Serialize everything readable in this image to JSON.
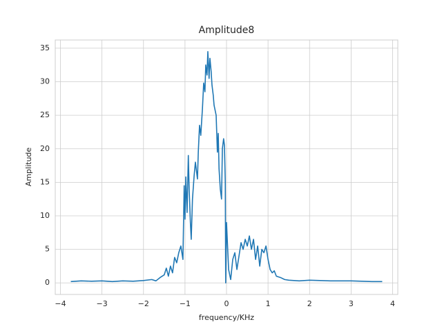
{
  "chart_data": {
    "type": "line",
    "title": "Amplitude8",
    "xlabel": "frequency/KHz",
    "ylabel": "Amplitude",
    "color": "#1f77b4",
    "grid": true,
    "x": [
      -3.75,
      -3.5,
      -3.25,
      -3.0,
      -2.75,
      -2.5,
      -2.25,
      -2.0,
      -1.8,
      -1.7,
      -1.6,
      -1.5,
      -1.45,
      -1.4,
      -1.35,
      -1.3,
      -1.25,
      -1.2,
      -1.15,
      -1.1,
      -1.05,
      -1.02,
      -1.0,
      -0.98,
      -0.95,
      -0.92,
      -0.9,
      -0.87,
      -0.85,
      -0.82,
      -0.78,
      -0.75,
      -0.7,
      -0.68,
      -0.65,
      -0.62,
      -0.58,
      -0.55,
      -0.52,
      -0.5,
      -0.47,
      -0.45,
      -0.42,
      -0.4,
      -0.37,
      -0.35,
      -0.32,
      -0.3,
      -0.25,
      -0.22,
      -0.2,
      -0.18,
      -0.15,
      -0.12,
      -0.1,
      -0.07,
      -0.05,
      -0.03,
      -0.02,
      0.0,
      0.05,
      0.1,
      0.15,
      0.2,
      0.25,
      0.3,
      0.35,
      0.4,
      0.45,
      0.5,
      0.55,
      0.6,
      0.65,
      0.7,
      0.75,
      0.8,
      0.85,
      0.9,
      0.95,
      1.0,
      1.05,
      1.1,
      1.15,
      1.2,
      1.3,
      1.4,
      1.5,
      1.75,
      2.0,
      2.5,
      3.0,
      3.5,
      3.75
    ],
    "values": [
      0.2,
      0.3,
      0.25,
      0.3,
      0.2,
      0.3,
      0.25,
      0.35,
      0.5,
      0.3,
      0.8,
      1.2,
      2.2,
      1.0,
      2.5,
      1.5,
      3.8,
      3.0,
      4.5,
      5.5,
      3.5,
      14.5,
      9.5,
      15.8,
      10.5,
      19.0,
      14.0,
      9.0,
      6.5,
      12.5,
      16.0,
      18.0,
      15.5,
      19.5,
      23.5,
      22.0,
      26.0,
      29.8,
      28.5,
      32.5,
      31.0,
      34.5,
      30.5,
      33.5,
      31.5,
      29.5,
      28.0,
      26.5,
      25.0,
      19.5,
      22.3,
      17.0,
      14.0,
      12.5,
      20.0,
      21.5,
      20.5,
      15.0,
      0.0,
      9.0,
      2.0,
      0.5,
      3.5,
      4.5,
      2.0,
      4.0,
      6.0,
      5.0,
      6.5,
      5.5,
      7.0,
      5.0,
      6.5,
      3.5,
      5.5,
      2.5,
      5.0,
      4.5,
      5.5,
      3.5,
      2.0,
      1.5,
      1.8,
      1.0,
      0.8,
      0.5,
      0.4,
      0.3,
      0.4,
      0.3,
      0.3,
      0.2,
      0.2
    ],
    "xlim": [
      -4.125,
      4.125
    ],
    "xticks": [
      {
        "value": -4,
        "label": "−4"
      },
      {
        "value": -3,
        "label": "−3"
      },
      {
        "value": -2,
        "label": "−2"
      },
      {
        "value": -1,
        "label": "−1"
      },
      0,
      1,
      2,
      3,
      4
    ],
    "ylim": [
      -1.725,
      36.225
    ],
    "yticks": [
      0,
      5,
      10,
      15,
      20,
      25,
      30,
      35
    ]
  }
}
